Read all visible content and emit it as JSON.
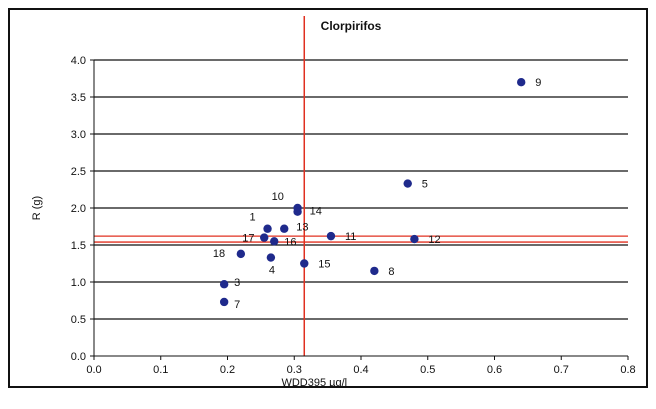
{
  "chart_data": {
    "type": "scatter",
    "title": "Clorpirifos",
    "xlabel": "WDD395 µg/l",
    "ylabel": "R (g)",
    "xlim": [
      0.0,
      0.8
    ],
    "ylim": [
      0.0,
      4.0
    ],
    "x_ticks": [
      "0.0",
      "0.1",
      "0.2",
      "0.3",
      "0.4",
      "0.5",
      "0.6",
      "0.7",
      "0.8"
    ],
    "y_ticks": [
      "0.0",
      "0.5",
      "1.0",
      "1.5",
      "2.0",
      "2.5",
      "3.0",
      "3.5",
      "4.0"
    ],
    "grid_y": true,
    "reference_lines": {
      "x": 0.315,
      "y": [
        1.54,
        1.62
      ],
      "color": "#e03020"
    },
    "marker_color": "#1f2a8c",
    "points": [
      {
        "label": "9",
        "x": 0.64,
        "y": 3.7
      },
      {
        "label": "5",
        "x": 0.47,
        "y": 2.33
      },
      {
        "label": "10",
        "x": 0.305,
        "y": 2.0
      },
      {
        "label": "14",
        "x": 0.305,
        "y": 1.95
      },
      {
        "label": "1",
        "x": 0.26,
        "y": 1.72
      },
      {
        "label": "13",
        "x": 0.285,
        "y": 1.72
      },
      {
        "label": "11",
        "x": 0.355,
        "y": 1.62
      },
      {
        "label": "12",
        "x": 0.48,
        "y": 1.58
      },
      {
        "label": "17",
        "x": 0.255,
        "y": 1.6
      },
      {
        "label": "16",
        "x": 0.27,
        "y": 1.55
      },
      {
        "label": "18",
        "x": 0.22,
        "y": 1.38
      },
      {
        "label": "4",
        "x": 0.265,
        "y": 1.33
      },
      {
        "label": "15",
        "x": 0.315,
        "y": 1.25
      },
      {
        "label": "8",
        "x": 0.42,
        "y": 1.15
      },
      {
        "label": "3",
        "x": 0.195,
        "y": 0.97
      },
      {
        "label": "7",
        "x": 0.195,
        "y": 0.73
      }
    ]
  }
}
